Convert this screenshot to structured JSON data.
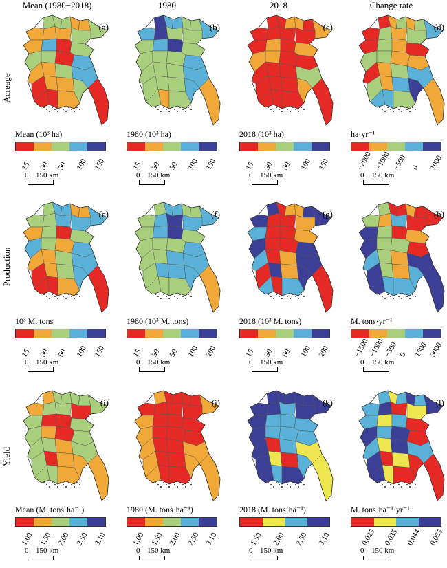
{
  "columns": [
    "Mean (1980−2018)",
    "1980",
    "2018",
    "Change rate"
  ],
  "rows": [
    "Acreage",
    "Production",
    "Yield"
  ],
  "palette": [
    "#e52a26",
    "#f0a838",
    "#a9cf7c",
    "#5ab1d7",
    "#3b3f96"
  ],
  "yield_2018_palette": [
    "#e52a26",
    "#ede64e",
    "#5ab1d7",
    "#3b3f96"
  ],
  "yield_change_palette": [
    "#e52a26",
    "#ede64e",
    "#5ab1d7",
    "#3b3f96"
  ],
  "scale": {
    "zero": "0",
    "km": "150 km"
  },
  "panels": [
    {
      "letter": "(a)",
      "legend_title": "Mean (10³ ha)",
      "ticks": [
        "15",
        "30",
        "50",
        "100",
        "150"
      ]
    },
    {
      "letter": "(b)",
      "legend_title": "1980 (10³ ha)",
      "ticks": [
        "15",
        "30",
        "50",
        "100",
        "150"
      ]
    },
    {
      "letter": "(c)",
      "legend_title": "2018 (10³ ha)",
      "ticks": [
        "15",
        "30",
        "50",
        "100",
        "150"
      ]
    },
    {
      "letter": "(d)",
      "legend_title": "ha·yr⁻¹",
      "ticks": [
        "−2000",
        "−1000",
        "−500",
        "0",
        "1000"
      ]
    },
    {
      "letter": "(e)",
      "legend_title": "10³ M. tons",
      "ticks": [
        "15",
        "30",
        "50",
        "100",
        "150"
      ]
    },
    {
      "letter": "(f)",
      "legend_title": "1980 (10³ M. tons)",
      "ticks": [
        "15",
        "30",
        "50",
        "100",
        "200"
      ]
    },
    {
      "letter": "(g)",
      "legend_title": "2018 (10³ M. tons)",
      "ticks": [
        "15",
        "30",
        "50",
        "100",
        "200"
      ]
    },
    {
      "letter": "(h)",
      "legend_title": "M. tons·yr⁻¹",
      "ticks": [
        "−1500",
        "−1000",
        "−500",
        "0",
        "1500",
        "3000"
      ]
    },
    {
      "letter": "(i)",
      "legend_title": "Mean (M. tons·ha⁻¹)",
      "ticks": [
        "1.00",
        "1.50",
        "2.00",
        "2.50",
        "3.10"
      ]
    },
    {
      "letter": "(j)",
      "legend_title": "1980 (M. tons·ha⁻¹)",
      "ticks": [
        "1.00",
        "1.50",
        "2.00",
        "2.50",
        "3.10"
      ]
    },
    {
      "letter": "(k)",
      "legend_title": "2018 (M. tons·ha⁻¹)",
      "ticks": [
        "1.50",
        "2.00",
        "2.50",
        "3.10"
      ]
    },
    {
      "letter": "(l)",
      "legend_title": "M. tons·ha⁻¹·yr⁻¹",
      "ticks": [
        "0.025",
        "0.035",
        "0.044",
        "0.055"
      ]
    }
  ]
}
